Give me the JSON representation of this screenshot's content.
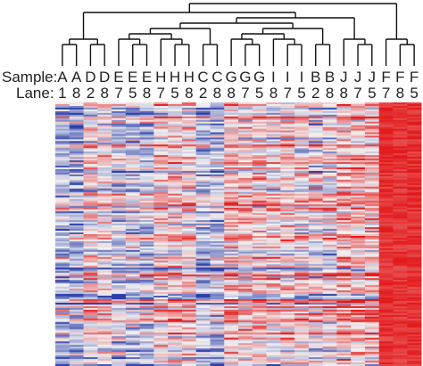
{
  "chart_data": {
    "type": "heatmap",
    "row_headers": {
      "sample": "Sample:",
      "lane": "Lane:"
    },
    "columns": [
      {
        "sample": "A",
        "lane": "1"
      },
      {
        "sample": "A",
        "lane": "8"
      },
      {
        "sample": "D",
        "lane": "2"
      },
      {
        "sample": "D",
        "lane": "8"
      },
      {
        "sample": "E",
        "lane": "7"
      },
      {
        "sample": "E",
        "lane": "5"
      },
      {
        "sample": "E",
        "lane": "8"
      },
      {
        "sample": "H",
        "lane": "7"
      },
      {
        "sample": "H",
        "lane": "5"
      },
      {
        "sample": "H",
        "lane": "8"
      },
      {
        "sample": "C",
        "lane": "2"
      },
      {
        "sample": "C",
        "lane": "8"
      },
      {
        "sample": "G",
        "lane": "8"
      },
      {
        "sample": "G",
        "lane": "7"
      },
      {
        "sample": "G",
        "lane": "5"
      },
      {
        "sample": "I",
        "lane": "8"
      },
      {
        "sample": "I",
        "lane": "7"
      },
      {
        "sample": "I",
        "lane": "5"
      },
      {
        "sample": "B",
        "lane": "2"
      },
      {
        "sample": "B",
        "lane": "8"
      },
      {
        "sample": "J",
        "lane": "8"
      },
      {
        "sample": "J",
        "lane": "7"
      },
      {
        "sample": "J",
        "lane": "5"
      },
      {
        "sample": "F",
        "lane": "7"
      },
      {
        "sample": "F",
        "lane": "8"
      },
      {
        "sample": "F",
        "lane": "5"
      }
    ],
    "dendrogram": {
      "leaf_order": [
        "A1",
        "A8",
        "D2",
        "D8",
        "E7",
        "E5",
        "E8",
        "H7",
        "H5",
        "H8",
        "C2",
        "C8",
        "G8",
        "G7",
        "G5",
        "I8",
        "I7",
        "I5",
        "B2",
        "B8",
        "J8",
        "J7",
        "J5",
        "F7",
        "F8",
        "F5"
      ],
      "merges": [
        {
          "a": 0,
          "b": 1,
          "h": 0.12
        },
        {
          "a": 2,
          "b": 3,
          "h": 0.12
        },
        {
          "a": 5,
          "b": 6,
          "h": 0.1
        },
        {
          "a": 4,
          "b": "m2",
          "h": 0.14
        },
        {
          "a": 8,
          "b": 9,
          "h": 0.1
        },
        {
          "a": 7,
          "b": "m4",
          "h": 0.14
        },
        {
          "a": 10,
          "b": 11,
          "h": 0.12
        },
        {
          "a": 13,
          "b": 14,
          "h": 0.1
        },
        {
          "a": 12,
          "b": "m7",
          "h": 0.14
        },
        {
          "a": 16,
          "b": 17,
          "h": 0.1
        },
        {
          "a": 15,
          "b": "m9",
          "h": 0.14
        },
        {
          "a": 18,
          "b": 19,
          "h": 0.12
        },
        {
          "a": 21,
          "b": 22,
          "h": 0.1
        },
        {
          "a": 20,
          "b": "m12",
          "h": 0.14
        },
        {
          "a": 24,
          "b": 25,
          "h": 0.1
        },
        {
          "a": 23,
          "b": "m14",
          "h": 0.14
        },
        {
          "a": "m0",
          "b": "m1",
          "h": 0.4
        },
        {
          "a": "m3",
          "b": "m5",
          "h": 0.3
        },
        {
          "a": "m17",
          "b": "m6",
          "h": 0.36
        },
        {
          "a": "m8",
          "b": "m10",
          "h": 0.36
        },
        {
          "a": "m19",
          "b": "m11",
          "h": 0.4
        },
        {
          "a": "m18",
          "b": "m20",
          "h": 0.5
        },
        {
          "a": "m21",
          "b": "m13",
          "h": 0.55
        },
        {
          "a": "m16",
          "b": "m22",
          "h": 0.8
        },
        {
          "a": "m23",
          "b": "m15",
          "h": 1.0
        }
      ]
    },
    "color_scale": {
      "low": "#2b3fa8",
      "mid": "#f2f2f2",
      "high": "#e31a1c"
    },
    "n_rows": 150,
    "block_bias": [
      -0.35,
      -0.35,
      0.1,
      0.1,
      -0.2,
      -0.2,
      -0.2,
      0.15,
      0.15,
      0.15,
      -0.25,
      -0.25,
      0.2,
      0.2,
      0.2,
      0.1,
      0.1,
      0.1,
      0.05,
      0.05,
      0.3,
      0.3,
      0.3,
      1.6,
      1.6,
      1.6
    ]
  }
}
